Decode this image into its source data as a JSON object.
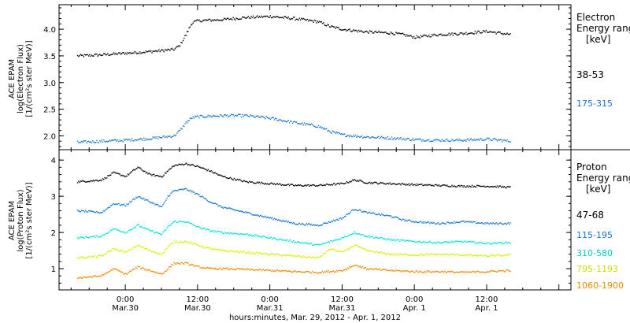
{
  "chart_data": [
    {
      "type": "scatter",
      "panel": "electron",
      "ylabel_lines": [
        "ACE EPAM",
        "log(Electron Flux)",
        "[1/(cm²s ster MeV)]"
      ],
      "ylim": [
        1.8,
        4.4
      ],
      "yticks": [
        2.0,
        2.5,
        3.0,
        3.5,
        4.0
      ],
      "ytick_labels": [
        "2.0",
        "2.5",
        "3.0",
        "3.5",
        "4.0"
      ],
      "legend_title": [
        "Electron",
        "Energy range",
        "[keV]"
      ],
      "legend_placement": "right",
      "series": [
        {
          "name": "38-53",
          "color": "#000000",
          "points": [
            [
              -8,
              3.5
            ],
            [
              -4,
              3.52
            ],
            [
              0,
              3.55
            ],
            [
              4,
              3.58
            ],
            [
              8,
              3.62
            ],
            [
              9,
              3.7
            ],
            [
              10,
              3.9
            ],
            [
              11,
              4.12
            ],
            [
              12,
              4.16
            ],
            [
              16,
              4.18
            ],
            [
              20,
              4.22
            ],
            [
              24,
              4.24
            ],
            [
              28,
              4.2
            ],
            [
              32,
              4.14
            ],
            [
              34,
              4.05
            ],
            [
              36,
              4.0
            ],
            [
              40,
              3.95
            ],
            [
              44,
              3.93
            ],
            [
              46,
              3.9
            ],
            [
              48,
              3.85
            ],
            [
              52,
              3.9
            ],
            [
              56,
              3.92
            ],
            [
              60,
              3.96
            ],
            [
              62,
              3.93
            ],
            [
              64,
              3.9
            ]
          ]
        },
        {
          "name": "175-315",
          "color": "#1874CD",
          "points": [
            [
              -8,
              1.88
            ],
            [
              -4,
              1.9
            ],
            [
              0,
              1.92
            ],
            [
              4,
              1.95
            ],
            [
              8,
              2.0
            ],
            [
              9,
              2.1
            ],
            [
              10,
              2.25
            ],
            [
              11,
              2.34
            ],
            [
              12,
              2.36
            ],
            [
              16,
              2.38
            ],
            [
              20,
              2.38
            ],
            [
              24,
              2.33
            ],
            [
              28,
              2.25
            ],
            [
              32,
              2.18
            ],
            [
              34,
              2.08
            ],
            [
              36,
              2.02
            ],
            [
              40,
              1.98
            ],
            [
              44,
              1.96
            ],
            [
              48,
              1.93
            ],
            [
              52,
              1.92
            ],
            [
              56,
              1.92
            ],
            [
              60,
              1.94
            ],
            [
              64,
              1.9
            ]
          ]
        }
      ]
    },
    {
      "type": "scatter",
      "panel": "proton",
      "ylabel_lines": [
        "ACE EPAM",
        "log(Proton Flux)",
        "[1/(cm²s ster MeV)]"
      ],
      "ylim": [
        0.5,
        4.2
      ],
      "yticks": [
        1,
        2,
        3,
        4
      ],
      "ytick_labels": [
        "1",
        "2",
        "3",
        "4"
      ],
      "legend_title": [
        "Proton",
        "Energy range",
        "[keV]"
      ],
      "legend_placement": "right",
      "series": [
        {
          "name": "47-68",
          "color": "#000000",
          "points": [
            [
              -8,
              3.4
            ],
            [
              -4,
              3.45
            ],
            [
              -2,
              3.65
            ],
            [
              0,
              3.55
            ],
            [
              2,
              3.8
            ],
            [
              4,
              3.6
            ],
            [
              6,
              3.55
            ],
            [
              7,
              3.7
            ],
            [
              8,
              3.85
            ],
            [
              10,
              3.9
            ],
            [
              12,
              3.82
            ],
            [
              14,
              3.7
            ],
            [
              16,
              3.55
            ],
            [
              20,
              3.4
            ],
            [
              24,
              3.35
            ],
            [
              28,
              3.3
            ],
            [
              32,
              3.3
            ],
            [
              36,
              3.35
            ],
            [
              38,
              3.45
            ],
            [
              40,
              3.38
            ],
            [
              44,
              3.35
            ],
            [
              48,
              3.32
            ],
            [
              52,
              3.3
            ],
            [
              56,
              3.28
            ],
            [
              60,
              3.28
            ],
            [
              64,
              3.25
            ]
          ]
        },
        {
          "name": "115-195",
          "color": "#1874CD",
          "points": [
            [
              -8,
              2.6
            ],
            [
              -4,
              2.55
            ],
            [
              -2,
              2.8
            ],
            [
              0,
              2.75
            ],
            [
              2,
              3.0
            ],
            [
              4,
              2.85
            ],
            [
              6,
              2.7
            ],
            [
              7,
              3.0
            ],
            [
              8,
              3.15
            ],
            [
              10,
              3.2
            ],
            [
              12,
              3.05
            ],
            [
              14,
              2.85
            ],
            [
              16,
              2.7
            ],
            [
              20,
              2.55
            ],
            [
              24,
              2.4
            ],
            [
              28,
              2.25
            ],
            [
              32,
              2.2
            ],
            [
              36,
              2.4
            ],
            [
              38,
              2.65
            ],
            [
              40,
              2.55
            ],
            [
              42,
              2.5
            ],
            [
              44,
              2.45
            ],
            [
              46,
              2.35
            ],
            [
              48,
              2.3
            ],
            [
              52,
              2.25
            ],
            [
              56,
              2.3
            ],
            [
              60,
              2.25
            ],
            [
              64,
              2.25
            ]
          ]
        },
        {
          "name": "310-580",
          "color": "#00E5D4",
          "points": [
            [
              -8,
              1.85
            ],
            [
              -4,
              1.9
            ],
            [
              -2,
              2.1
            ],
            [
              0,
              2.0
            ],
            [
              2,
              2.2
            ],
            [
              4,
              2.05
            ],
            [
              6,
              1.95
            ],
            [
              7,
              2.15
            ],
            [
              8,
              2.3
            ],
            [
              10,
              2.3
            ],
            [
              12,
              2.15
            ],
            [
              14,
              2.05
            ],
            [
              16,
              2.0
            ],
            [
              20,
              1.95
            ],
            [
              24,
              1.85
            ],
            [
              28,
              1.75
            ],
            [
              32,
              1.65
            ],
            [
              36,
              1.85
            ],
            [
              38,
              2.0
            ],
            [
              40,
              1.9
            ],
            [
              44,
              1.8
            ],
            [
              48,
              1.75
            ],
            [
              52,
              1.72
            ],
            [
              56,
              1.75
            ],
            [
              60,
              1.7
            ],
            [
              64,
              1.72
            ]
          ]
        },
        {
          "name": "795-1193",
          "color": "#D8F000",
          "points": [
            [
              -8,
              1.3
            ],
            [
              -4,
              1.35
            ],
            [
              -2,
              1.55
            ],
            [
              0,
              1.45
            ],
            [
              2,
              1.65
            ],
            [
              4,
              1.5
            ],
            [
              6,
              1.4
            ],
            [
              7,
              1.6
            ],
            [
              8,
              1.75
            ],
            [
              10,
              1.75
            ],
            [
              12,
              1.65
            ],
            [
              14,
              1.55
            ],
            [
              16,
              1.5
            ],
            [
              20,
              1.45
            ],
            [
              24,
              1.4
            ],
            [
              28,
              1.35
            ],
            [
              32,
              1.3
            ],
            [
              34,
              1.55
            ],
            [
              36,
              1.45
            ],
            [
              38,
              1.65
            ],
            [
              40,
              1.5
            ],
            [
              44,
              1.4
            ],
            [
              48,
              1.38
            ],
            [
              52,
              1.4
            ],
            [
              56,
              1.38
            ],
            [
              60,
              1.35
            ],
            [
              64,
              1.38
            ]
          ]
        },
        {
          "name": "1060-1900",
          "color": "#F08A00",
          "points": [
            [
              -8,
              0.75
            ],
            [
              -4,
              0.8
            ],
            [
              -2,
              1.0
            ],
            [
              0,
              0.85
            ],
            [
              2,
              1.05
            ],
            [
              4,
              0.95
            ],
            [
              6,
              0.85
            ],
            [
              7,
              1.0
            ],
            [
              8,
              1.15
            ],
            [
              10,
              1.15
            ],
            [
              12,
              1.05
            ],
            [
              14,
              1.0
            ],
            [
              16,
              1.0
            ],
            [
              20,
              0.98
            ],
            [
              24,
              0.95
            ],
            [
              28,
              0.92
            ],
            [
              32,
              0.9
            ],
            [
              36,
              0.95
            ],
            [
              38,
              1.1
            ],
            [
              40,
              1.0
            ],
            [
              44,
              0.95
            ],
            [
              48,
              0.92
            ],
            [
              52,
              0.92
            ],
            [
              56,
              0.9
            ],
            [
              60,
              0.92
            ],
            [
              64,
              0.95
            ]
          ]
        }
      ]
    }
  ],
  "x_axis": {
    "unit": "hours relative to 0:00 Mar.30, 2012",
    "range": [
      -11,
      74
    ],
    "major_ticks": [
      0,
      12,
      24,
      36,
      48,
      60
    ],
    "tick_labels": [
      {
        "time": "0:00",
        "date": "Mar.30"
      },
      {
        "time": "12:00",
        "date": "Mar.30"
      },
      {
        "time": "0:00",
        "date": "Mar.31"
      },
      {
        "time": "12:00",
        "date": "Mar.31"
      },
      {
        "time": "0:00",
        "date": "Apr. 1"
      },
      {
        "time": "12:00",
        "date": "Apr. 1"
      }
    ],
    "label": "hours:minutes, Mar. 29, 2012 - Apr. 1, 2012"
  }
}
